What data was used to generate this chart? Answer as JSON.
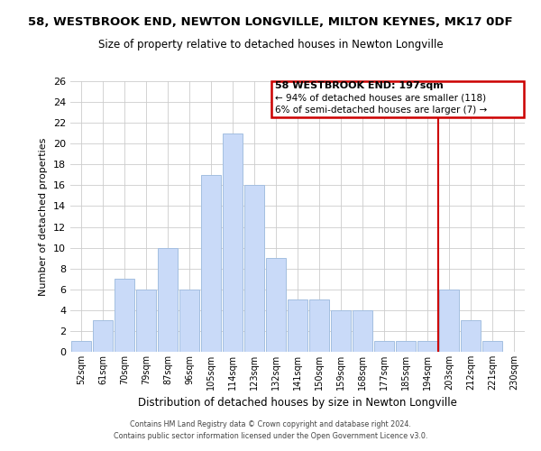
{
  "title": "58, WESTBROOK END, NEWTON LONGVILLE, MILTON KEYNES, MK17 0DF",
  "subtitle": "Size of property relative to detached houses in Newton Longville",
  "xlabel": "Distribution of detached houses by size in Newton Longville",
  "ylabel": "Number of detached properties",
  "bar_labels": [
    "52sqm",
    "61sqm",
    "70sqm",
    "79sqm",
    "87sqm",
    "96sqm",
    "105sqm",
    "114sqm",
    "123sqm",
    "132sqm",
    "141sqm",
    "150sqm",
    "159sqm",
    "168sqm",
    "177sqm",
    "185sqm",
    "194sqm",
    "203sqm",
    "212sqm",
    "221sqm",
    "230sqm"
  ],
  "bar_heights": [
    1,
    3,
    7,
    6,
    10,
    6,
    17,
    21,
    16,
    9,
    5,
    5,
    4,
    4,
    1,
    1,
    1,
    6,
    3,
    1,
    0
  ],
  "bar_color": "#c9daf8",
  "bar_edgecolor": "#a4bfe0",
  "ylim": [
    0,
    26
  ],
  "yticks": [
    0,
    2,
    4,
    6,
    8,
    10,
    12,
    14,
    16,
    18,
    20,
    22,
    24,
    26
  ],
  "vline_color": "#cc0000",
  "annotation_title": "58 WESTBROOK END: 197sqm",
  "annotation_line1": "← 94% of detached houses are smaller (118)",
  "annotation_line2": "6% of semi-detached houses are larger (7) →",
  "annotation_box_color": "#cc0000",
  "footer_line1": "Contains HM Land Registry data © Crown copyright and database right 2024.",
  "footer_line2": "Contains public sector information licensed under the Open Government Licence v3.0.",
  "background_color": "#ffffff",
  "grid_color": "#cccccc"
}
